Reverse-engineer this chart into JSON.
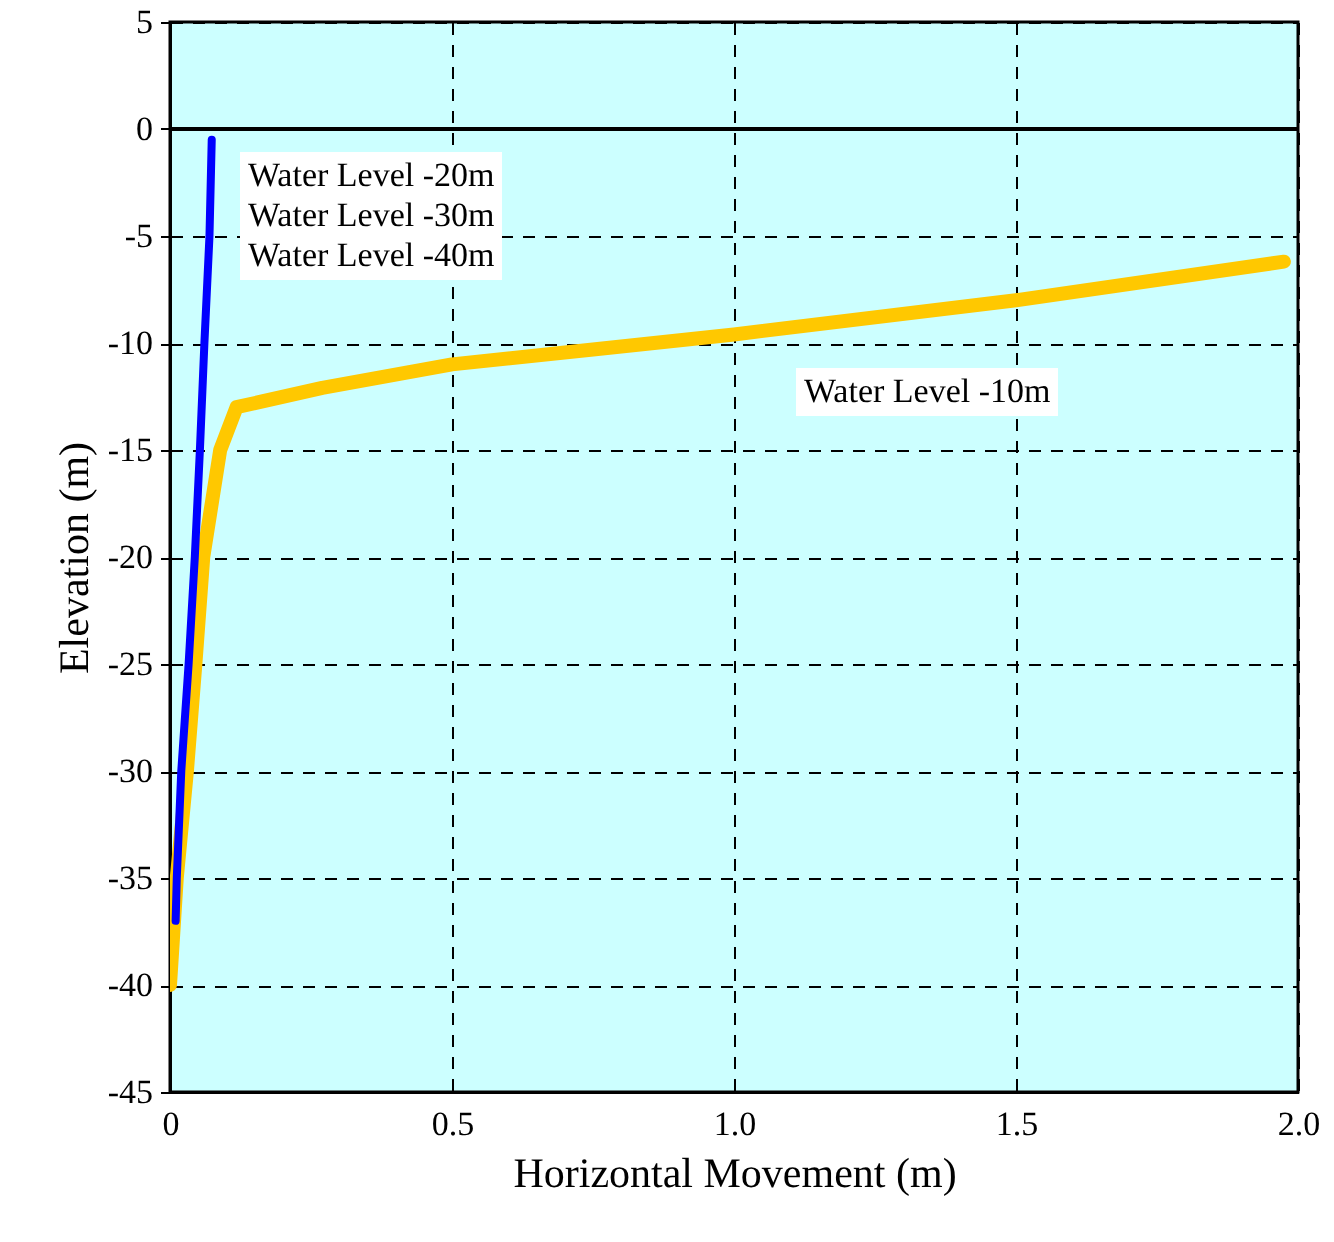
{
  "chart_data": {
    "type": "line",
    "xlabel": "Horizontal Movement (m)",
    "ylabel": "Elevation (m)",
    "xlim": [
      0,
      2.0
    ],
    "xticks": [
      0,
      0.5,
      {
        "value": 1,
        "label": "1.0"
      },
      1.5,
      {
        "value": 2,
        "label": "2.0"
      }
    ],
    "ylim": [
      -45,
      5
    ],
    "yticks": [
      5,
      0,
      -5,
      -10,
      -15,
      -20,
      -25,
      -30,
      -35,
      -40,
      -45
    ],
    "grid": true,
    "ref_lines": [
      {
        "axis": "y",
        "value": 0,
        "color": "#000000"
      }
    ],
    "annotations": [
      "Water Level -20m",
      "Water Level -30m",
      "Water Level -40m",
      "Water Level -10m"
    ],
    "series": [
      {
        "color": "#ffc800",
        "x": [
          0,
          0.012,
          0.03,
          0.045,
          0.059,
          0.089,
          0.118,
          0.27,
          0.5,
          0.75,
          1.0,
          1.5,
          1.975
        ],
        "values": [
          -40,
          -35,
          -30,
          -25,
          -20,
          -15,
          -13,
          -12.1,
          -11,
          -10.3,
          -9.6,
          -8,
          -6.2
        ]
      },
      {
        "color": "#0000ff",
        "x": [
          0.074,
          0.07,
          0.061,
          0.053,
          0.044,
          0.033,
          0.02,
          0.012,
          0.01
        ],
        "values": [
          -0.5,
          -5,
          -10,
          -15,
          -20,
          -25,
          -30,
          -35,
          -37
        ]
      }
    ]
  }
}
